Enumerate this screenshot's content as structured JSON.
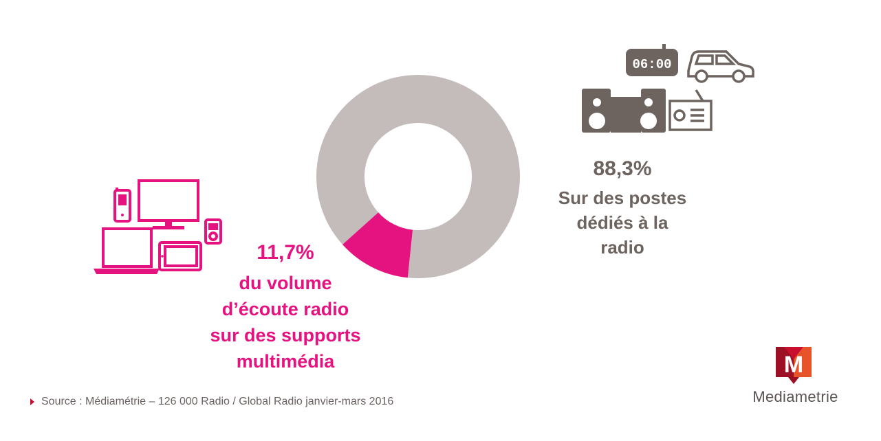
{
  "chart_data": {
    "type": "pie",
    "donut": true,
    "slices": [
      {
        "label": "Sur des postes dédiés à la radio",
        "value": 88.3,
        "color": "#c4bcbb"
      },
      {
        "label": "du volume d’écoute radio sur des supports multimédia",
        "value": 11.7,
        "color": "#e5137f"
      }
    ]
  },
  "labels": {
    "multimedia_percent": "11,7%",
    "multimedia_lines": [
      "du volume",
      "d’écoute radio",
      "sur des supports",
      "multimédia"
    ],
    "dedicated_percent": "88,3%",
    "dedicated_lines": [
      "Sur des postes",
      "dédiés à la",
      "radio"
    ]
  },
  "icons": {
    "clock_display": "06:00",
    "multimedia_devices": [
      "mobile-phone-icon",
      "tv-monitor-icon",
      "mp3-player-icon",
      "laptop-icon",
      "tablet-icon"
    ],
    "dedicated_devices": [
      "alarm-clock-icon",
      "car-icon",
      "hifi-speakers-icon",
      "radio-set-icon"
    ]
  },
  "footer": {
    "source": "Source : Médiamétrie –  126 000 Radio / Global Radio janvier-mars 2016"
  },
  "brand": {
    "name": "Mediametrie",
    "logo_letter": "M",
    "colors": {
      "primary": "#c8102e",
      "orange": "#e8542a",
      "dark": "#9c0f24"
    }
  }
}
